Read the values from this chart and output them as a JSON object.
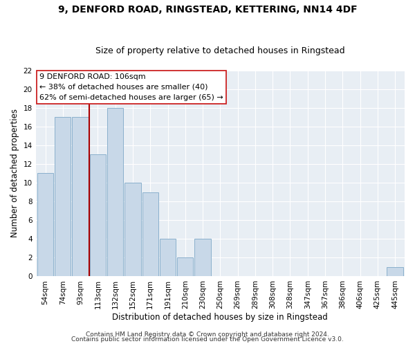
{
  "title": "9, DENFORD ROAD, RINGSTEAD, KETTERING, NN14 4DF",
  "subtitle": "Size of property relative to detached houses in Ringstead",
  "xlabel": "Distribution of detached houses by size in Ringstead",
  "ylabel": "Number of detached properties",
  "bar_labels": [
    "54sqm",
    "74sqm",
    "93sqm",
    "113sqm",
    "132sqm",
    "152sqm",
    "171sqm",
    "191sqm",
    "210sqm",
    "230sqm",
    "250sqm",
    "269sqm",
    "289sqm",
    "308sqm",
    "328sqm",
    "347sqm",
    "367sqm",
    "386sqm",
    "406sqm",
    "425sqm",
    "445sqm"
  ],
  "bar_values": [
    11,
    17,
    17,
    13,
    18,
    10,
    9,
    4,
    2,
    4,
    0,
    0,
    0,
    0,
    0,
    0,
    0,
    0,
    0,
    0,
    1
  ],
  "ylim": [
    0,
    22
  ],
  "yticks": [
    0,
    2,
    4,
    6,
    8,
    10,
    12,
    14,
    16,
    18,
    20,
    22
  ],
  "bar_color": "#c8d8e8",
  "bar_edge_color": "#8ab0cc",
  "property_line_color": "#aa0000",
  "annotation_title": "9 DENFORD ROAD: 106sqm",
  "annotation_line1": "← 38% of detached houses are smaller (40)",
  "annotation_line2": "62% of semi-detached houses are larger (65) →",
  "annotation_box_facecolor": "#ffffff",
  "annotation_box_edgecolor": "#cc2222",
  "bg_color": "#e8eef4",
  "grid_color": "#ffffff",
  "footer1": "Contains HM Land Registry data © Crown copyright and database right 2024.",
  "footer2": "Contains public sector information licensed under the Open Government Licence v3.0.",
  "title_fontsize": 10,
  "subtitle_fontsize": 9,
  "axis_label_fontsize": 8.5,
  "tick_fontsize": 7.5,
  "annotation_fontsize": 8,
  "footer_fontsize": 6.5
}
